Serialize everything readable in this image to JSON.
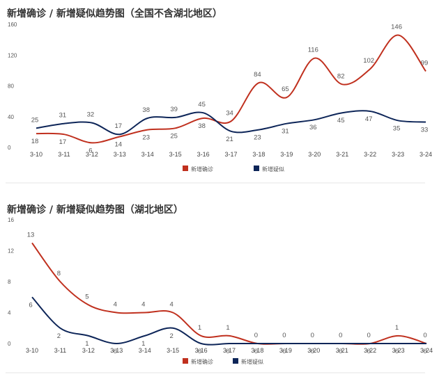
{
  "chart_data": [
    {
      "type": "line",
      "title": "新增确诊 / 新增疑似趋势图（全国不含湖北地区）",
      "categories": [
        "3-10",
        "3-11",
        "3-12",
        "3-13",
        "3-14",
        "3-15",
        "3-16",
        "3-17",
        "3-18",
        "3-19",
        "3-20",
        "3-21",
        "3-22",
        "3-23",
        "3-24"
      ],
      "series": [
        {
          "name": "新增确诊",
          "color": "#c0301e",
          "values": [
            18,
            17,
            6,
            14,
            23,
            25,
            38,
            34,
            84,
            65,
            116,
            82,
            102,
            146,
            99
          ]
        },
        {
          "name": "新增疑似",
          "color": "#0d2558",
          "values": [
            25,
            31,
            32,
            17,
            38,
            39,
            45,
            21,
            23,
            31,
            36,
            45,
            47,
            35,
            33
          ]
        }
      ],
      "yticks": [
        "0",
        "40",
        "80",
        "120",
        "160"
      ],
      "ylim": [
        0,
        160
      ],
      "legend": "bottom-center",
      "grid": false
    },
    {
      "type": "line",
      "title": "新增确诊 / 新增疑似趋势图（湖北地区）",
      "categories": [
        "3-10",
        "3-11",
        "3-12",
        "3-13",
        "3-14",
        "3-15",
        "3-16",
        "3-17",
        "3-18",
        "3-19",
        "3-20",
        "3-21",
        "3-22",
        "3-23",
        "3-24"
      ],
      "series": [
        {
          "name": "新增确诊",
          "color": "#c0301e",
          "values": [
            13,
            8,
            5,
            4,
            4,
            4,
            1,
            1,
            0,
            0,
            0,
            0,
            0,
            1,
            0
          ]
        },
        {
          "name": "新增疑似",
          "color": "#0d2558",
          "values": [
            6,
            2,
            1,
            0,
            1,
            2,
            0,
            0,
            0,
            0,
            0,
            0,
            0,
            0,
            0
          ]
        }
      ],
      "yticks": [
        "0",
        "4",
        "8",
        "12",
        "16"
      ],
      "ylim": [
        0,
        16
      ],
      "legend": "bottom-center",
      "grid": false
    }
  ]
}
